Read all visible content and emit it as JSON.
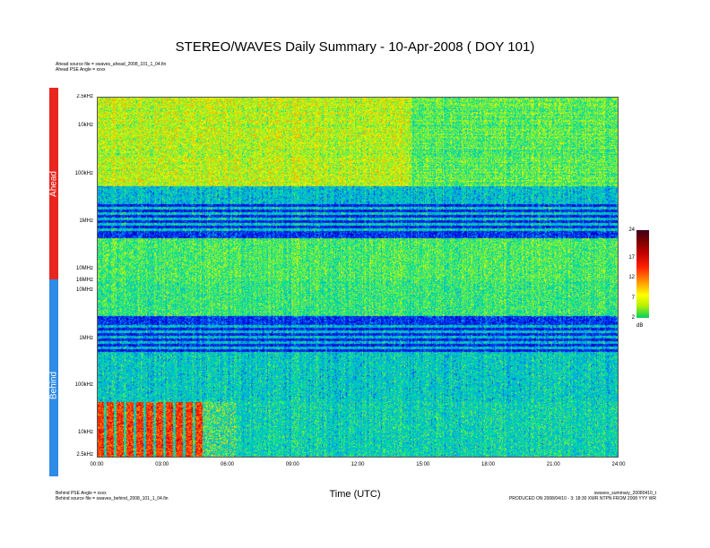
{
  "header": {
    "title": "STEREO/WAVES Daily Summary - 10-Apr-2008 ( DOY 101)",
    "ahead_source": "Ahead source file = swaves_ahead_2008_101_1_04.fin",
    "ahead_angle": "Ahead PSE Angle = xxxx",
    "behind_angle": "Behind PSE Angle = xxxx",
    "behind_source": "Behind source file = swaves_behind_2008_101_1_04.fin",
    "summary_file": "swaves_summary_20080410_t",
    "production": "PRODUCED ON 2008/04/10 - 3: 18:30 XWR NTPN FROM 2008 YYY  WR"
  },
  "side_bars": {
    "ahead_label": "Ahead",
    "ahead_color": "#e8251e",
    "behind_label": "Behind",
    "behind_color": "#2e8be6"
  },
  "chart_data": {
    "type": "heatmap",
    "title": "STEREO/WAVES Daily Summary - 10-Apr-2008 ( DOY 101)",
    "xlabel": "Time (UTC)",
    "x_ticks": [
      "00:00",
      "03:00",
      "06:00",
      "09:00",
      "12:00",
      "15:00",
      "18:00",
      "21:00",
      "24:00"
    ],
    "xlim": [
      "00:00",
      "24:00"
    ],
    "panels": [
      {
        "name": "Ahead",
        "y_scale": "log",
        "y_ticks": [
          "2.5kHz",
          "10kHz",
          "100kHz",
          "1MHz",
          "10MHz",
          "16MHz"
        ]
      },
      {
        "name": "Behind",
        "y_scale": "log",
        "y_ticks": [
          "16MHz",
          "10MHz",
          "1MHz",
          "100kHz",
          "10kHz",
          "2.5kHz"
        ]
      }
    ],
    "colorbar": {
      "ticks": [
        "2",
        "7",
        "12",
        "17",
        "24"
      ],
      "range": [
        2,
        24
      ],
      "unit": "dB",
      "unit_label": "dB",
      "colors": [
        "#00d060",
        "#ffff00",
        "#ff2000",
        "#7a0000",
        "#3c001e"
      ]
    },
    "features": [
      {
        "panel": "Behind",
        "time_start": "00:00",
        "time_end": "05:30",
        "freq_range": [
          "2.5kHz",
          "40kHz"
        ],
        "intensity": "high (red/orange)"
      }
    ]
  }
}
